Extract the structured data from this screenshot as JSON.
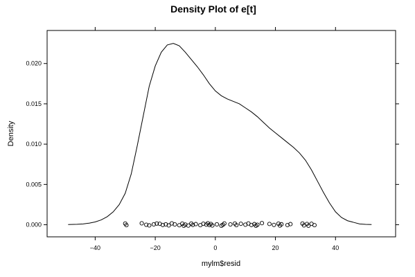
{
  "chart_data": {
    "type": "line",
    "title": "Density Plot of e[t]",
    "xlabel": "mylm$resid",
    "ylabel": "Density",
    "xlim": [
      -56,
      60
    ],
    "ylim": [
      -0.0015,
      0.0241
    ],
    "x_ticks": [
      -40,
      -20,
      0,
      20,
      40
    ],
    "x_tick_labels": [
      "−40",
      "−20",
      "0",
      "20",
      "40"
    ],
    "y_ticks": [
      0,
      0.005,
      0.01,
      0.015,
      0.02
    ],
    "y_tick_labels": [
      "0.000",
      "0.005",
      "0.010",
      "0.015",
      "0.020"
    ],
    "grid": false,
    "series": [
      {
        "x": [
          -49,
          -46,
          -44,
          -42,
          -40,
          -38,
          -36,
          -34,
          -32,
          -30,
          -28,
          -26,
          -24,
          -22,
          -20,
          -18,
          -16,
          -14,
          -12,
          -10,
          -8,
          -6,
          -4,
          -2,
          0,
          2,
          4,
          6,
          8,
          10,
          12,
          14,
          16,
          18,
          20,
          22,
          24,
          26,
          28,
          30,
          32,
          34,
          36,
          38,
          40,
          42,
          44,
          46,
          48,
          50,
          52
        ],
        "y": [
          3e-05,
          6e-05,
          0.0001,
          0.0002,
          0.00035,
          0.0006,
          0.001,
          0.0016,
          0.0025,
          0.0039,
          0.0063,
          0.0098,
          0.0135,
          0.0172,
          0.0197,
          0.0214,
          0.0223,
          0.0225,
          0.0222,
          0.0214,
          0.0205,
          0.0196,
          0.0186,
          0.0175,
          0.0166,
          0.016,
          0.0156,
          0.0153,
          0.015,
          0.0145,
          0.014,
          0.0134,
          0.0127,
          0.012,
          0.0114,
          0.0108,
          0.0102,
          0.0096,
          0.0089,
          0.008,
          0.0068,
          0.0054,
          0.004,
          0.0027,
          0.0016,
          0.0009,
          0.0005,
          0.0003,
          0.0001,
          5e-05,
          2e-05
        ]
      }
    ],
    "rug_points": [
      {
        "x": -30,
        "y": 0.00015
      },
      {
        "x": -29.6,
        "y": -5e-05
      },
      {
        "x": -24.5,
        "y": 0.00018
      },
      {
        "x": -23,
        "y": 0.0
      },
      {
        "x": -22,
        "y": -8e-05
      },
      {
        "x": -20.5,
        "y": 5e-05
      },
      {
        "x": -19.5,
        "y": 0.00015
      },
      {
        "x": -18.5,
        "y": 0.00012
      },
      {
        "x": -17.5,
        "y": -3e-05
      },
      {
        "x": -16.5,
        "y": 5e-05
      },
      {
        "x": -15.5,
        "y": -8e-05
      },
      {
        "x": -14.5,
        "y": 0.00017
      },
      {
        "x": -13.5,
        "y": 4e-05
      },
      {
        "x": -12,
        "y": -6e-05
      },
      {
        "x": -11,
        "y": 0.00014
      },
      {
        "x": -10.5,
        "y": -0.00012
      },
      {
        "x": -10,
        "y": 2e-05
      },
      {
        "x": -9,
        "y": -0.0001
      },
      {
        "x": -8,
        "y": 0.00015
      },
      {
        "x": -7.5,
        "y": -2e-05
      },
      {
        "x": -6.5,
        "y": 8e-05
      },
      {
        "x": -5,
        "y": -5e-05
      },
      {
        "x": -4,
        "y": 0.00013
      },
      {
        "x": -3,
        "y": 2e-05
      },
      {
        "x": -2.5,
        "y": 0.00018
      },
      {
        "x": -2,
        "y": -3e-05
      },
      {
        "x": -1.5,
        "y": 0.0001
      },
      {
        "x": -1,
        "y": -9e-05
      },
      {
        "x": 0.5,
        "y": 5e-05
      },
      {
        "x": 2,
        "y": -0.00012
      },
      {
        "x": 2.5,
        "y": 0.0
      },
      {
        "x": 3,
        "y": 0.00016
      },
      {
        "x": 5,
        "y": 4e-05
      },
      {
        "x": 6.5,
        "y": 0.00015
      },
      {
        "x": 7,
        "y": -5e-05
      },
      {
        "x": 8.5,
        "y": 0.00012
      },
      {
        "x": 10,
        "y": 1e-05
      },
      {
        "x": 11,
        "y": 0.00016
      },
      {
        "x": 12,
        "y": -3e-05
      },
      {
        "x": 13,
        "y": 8e-05
      },
      {
        "x": 13.5,
        "y": -0.00012
      },
      {
        "x": 14,
        "y": 0.0
      },
      {
        "x": 15.5,
        "y": 0.0002
      },
      {
        "x": 18,
        "y": 0.0001
      },
      {
        "x": 19.5,
        "y": -2e-05
      },
      {
        "x": 21,
        "y": 0.00014
      },
      {
        "x": 21.5,
        "y": -0.0001
      },
      {
        "x": 22,
        "y": 6e-05
      },
      {
        "x": 24,
        "y": -4e-05
      },
      {
        "x": 25,
        "y": 8e-05
      },
      {
        "x": 29,
        "y": 0.00015
      },
      {
        "x": 29.5,
        "y": -8e-05
      },
      {
        "x": 30.5,
        "y": 0.0001
      },
      {
        "x": 31,
        "y": -0.00012
      },
      {
        "x": 32,
        "y": 0.00012
      },
      {
        "x": 33,
        "y": -5e-05
      }
    ]
  }
}
